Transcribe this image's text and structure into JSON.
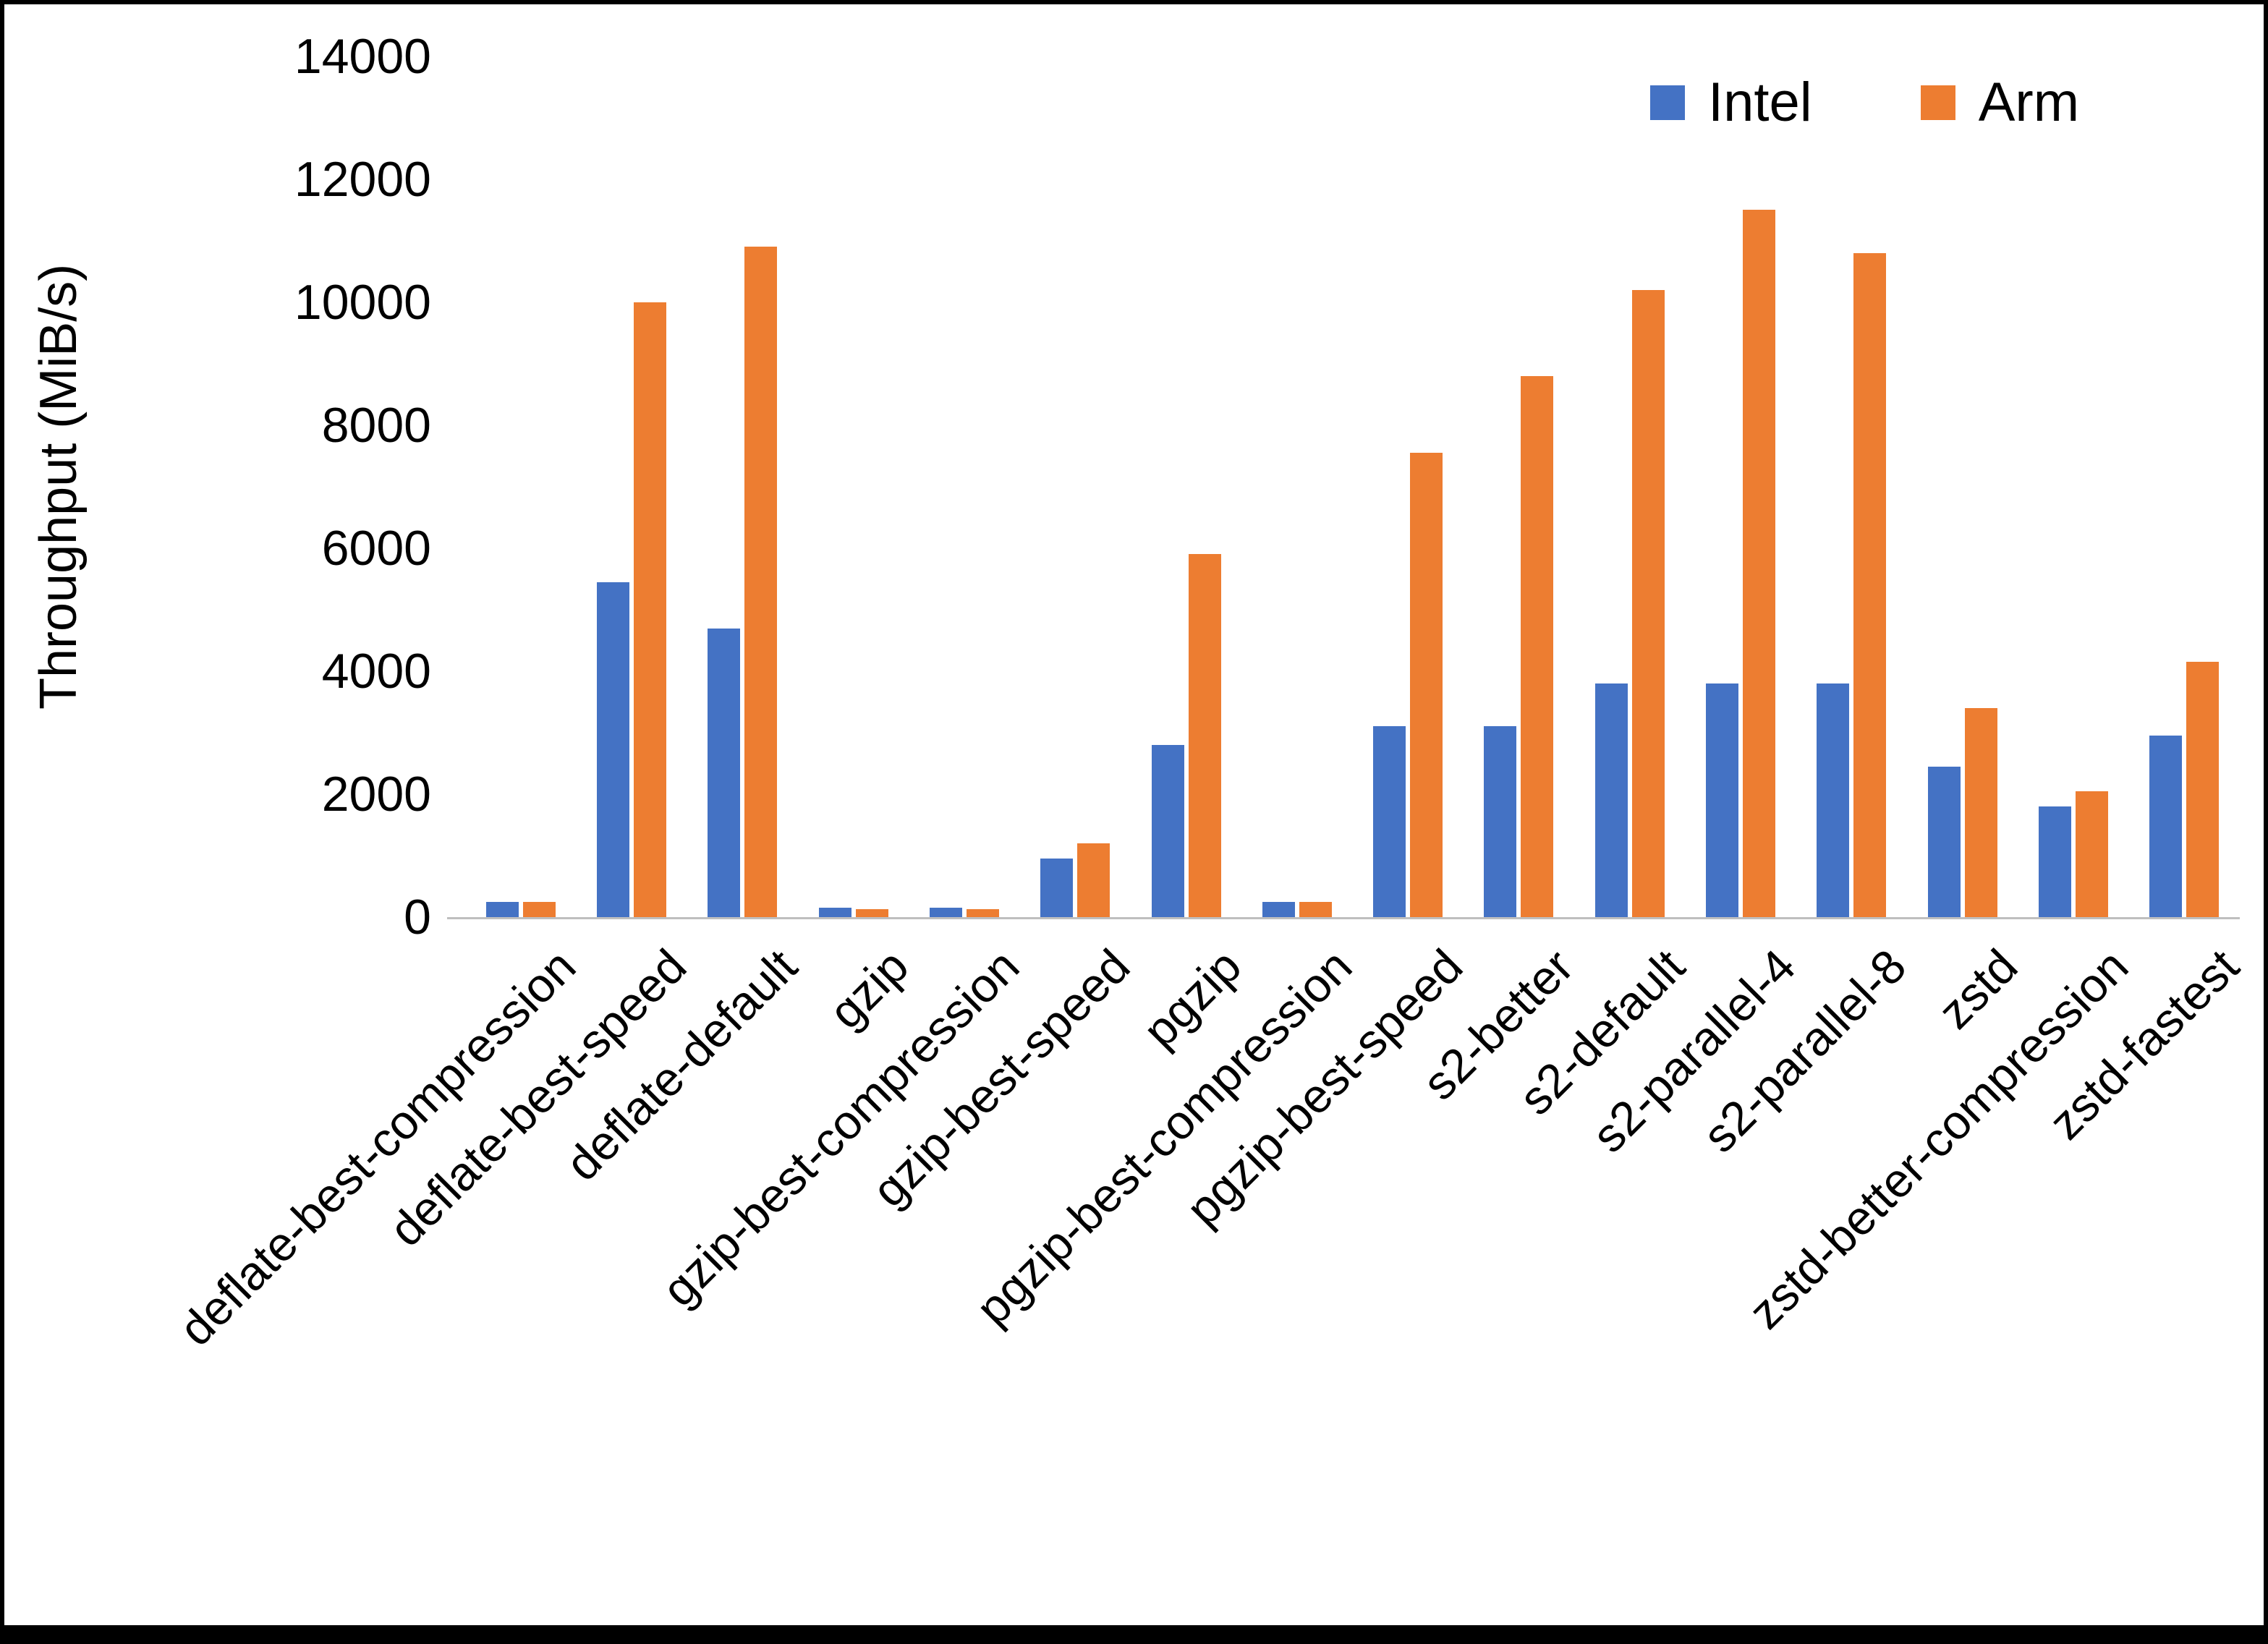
{
  "chart_data": {
    "type": "bar",
    "ylabel": "Throughput (MiB/s)",
    "xlabel": "",
    "ylim": [
      0,
      14000
    ],
    "ytick_step": 2000,
    "grid": false,
    "legend_position": "top-right",
    "categories": [
      "deflate-best-compression",
      "deflate-best-speed",
      "deflate-default",
      "gzip",
      "gzip-best-compression",
      "gzip-best-speed",
      "pgzip",
      "pgzip-best-compression",
      "pgzip-best-speed",
      "s2-better",
      "s2-default",
      "s2-parallel-4",
      "s2-parallel-8",
      "zstd",
      "zstd-better-compression",
      "zstd-fastest"
    ],
    "series": [
      {
        "name": "Intel",
        "color": "#4472C4",
        "values": [
          250,
          5450,
          4700,
          150,
          150,
          950,
          2800,
          250,
          3100,
          3100,
          3800,
          3800,
          3800,
          2450,
          1800,
          2950
        ]
      },
      {
        "name": "Arm",
        "color": "#ED7D31",
        "values": [
          250,
          10000,
          10900,
          130,
          130,
          1200,
          5900,
          250,
          7550,
          8800,
          10200,
          11500,
          10800,
          3400,
          2050,
          4150
        ]
      }
    ]
  }
}
